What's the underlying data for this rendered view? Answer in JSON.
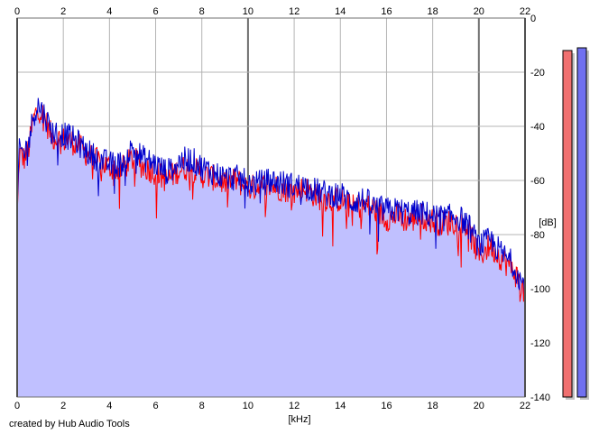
{
  "chart_data": {
    "type": "line",
    "xlabel": "[kHz]",
    "ylabel": "[dB]",
    "xlim": [
      0,
      22
    ],
    "ylim": [
      -140,
      0
    ],
    "x_ticks": [
      0,
      2,
      4,
      6,
      8,
      10,
      12,
      14,
      16,
      18,
      20,
      22
    ],
    "y_ticks": [
      0,
      -20,
      -40,
      -60,
      -80,
      -100,
      -120,
      -140
    ],
    "grid": true,
    "x_ticks_top": true,
    "series": [
      {
        "color": "#ff0000",
        "x": [
          0,
          0.1,
          0.3,
          0.5,
          0.7,
          0.9,
          1.2,
          1.5,
          2.0,
          2.5,
          3.0,
          3.5,
          4.0,
          4.5,
          5.0,
          5.5,
          6.0,
          6.5,
          7.0,
          7.5,
          8.0,
          8.5,
          9.0,
          9.5,
          10.0,
          10.5,
          11.0,
          11.5,
          12.0,
          12.5,
          13.0,
          13.5,
          14.0,
          14.5,
          15.0,
          15.5,
          16.0,
          16.5,
          17.0,
          17.5,
          18.0,
          18.5,
          19.0,
          19.5,
          20.0,
          20.5,
          21.0,
          21.5,
          22.0
        ],
        "values": [
          -75,
          -50,
          -52,
          -48,
          -38,
          -33,
          -37,
          -44,
          -45,
          -46,
          -50,
          -53,
          -55,
          -56,
          -52,
          -55,
          -57,
          -60,
          -56,
          -55,
          -58,
          -59,
          -61,
          -60,
          -63,
          -62,
          -62,
          -63,
          -64,
          -63,
          -66,
          -67,
          -67,
          -70,
          -69,
          -71,
          -74,
          -73,
          -75,
          -73,
          -75,
          -76,
          -75,
          -77,
          -88,
          -84,
          -89,
          -93,
          -102
        ]
      },
      {
        "color": "#0000cc",
        "x": [
          0,
          0.1,
          0.3,
          0.5,
          0.7,
          0.9,
          1.2,
          1.5,
          2.0,
          2.5,
          3.0,
          3.5,
          4.0,
          4.5,
          5.0,
          5.5,
          6.0,
          6.5,
          7.0,
          7.5,
          8.0,
          8.5,
          9.0,
          9.5,
          10.0,
          10.5,
          11.0,
          11.5,
          12.0,
          12.5,
          13.0,
          13.5,
          14.0,
          14.5,
          15.0,
          15.5,
          16.0,
          16.5,
          17.0,
          17.5,
          18.0,
          18.5,
          19.0,
          19.5,
          20.0,
          20.5,
          21.0,
          21.5,
          22.0
        ],
        "values": [
          -72,
          -48,
          -50,
          -46,
          -36,
          -32,
          -36,
          -42,
          -43,
          -45,
          -49,
          -52,
          -54,
          -54,
          -48,
          -52,
          -54,
          -57,
          -53,
          -52,
          -55,
          -57,
          -59,
          -59,
          -61,
          -61,
          -60,
          -61,
          -62,
          -62,
          -64,
          -65,
          -65,
          -68,
          -67,
          -70,
          -71,
          -71,
          -72,
          -72,
          -73,
          -74,
          -73,
          -76,
          -84,
          -82,
          -87,
          -91,
          -100
        ]
      }
    ],
    "fill_color": "#c0c0ff",
    "level_meters": [
      {
        "color": "#f07070",
        "level_db": -12
      },
      {
        "color": "#7070f0",
        "level_db": -11
      }
    ],
    "meter_range": [
      -140,
      0
    ],
    "credit": "created by Hub Audio Tools"
  }
}
